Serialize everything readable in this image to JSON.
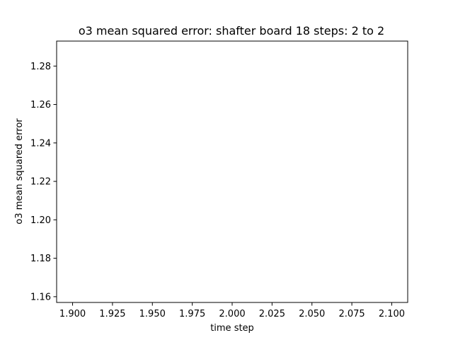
{
  "chart_data": {
    "type": "line",
    "title": "o3 mean squared error: shafter board 18 steps: 2 to 2",
    "xlabel": "time step",
    "ylabel": "o3 mean squared error",
    "xlim": [
      1.89,
      2.11
    ],
    "ylim": [
      1.157,
      1.293
    ],
    "xticks": [
      1.9,
      1.925,
      1.95,
      1.975,
      2.0,
      2.025,
      2.05,
      2.075,
      2.1
    ],
    "xtick_labels": [
      "1.900",
      "1.925",
      "1.950",
      "1.975",
      "2.000",
      "2.025",
      "2.050",
      "2.075",
      "2.100"
    ],
    "yticks": [
      1.16,
      1.18,
      1.2,
      1.22,
      1.24,
      1.26,
      1.28
    ],
    "ytick_labels": [
      "1.16",
      "1.18",
      "1.20",
      "1.22",
      "1.24",
      "1.26",
      "1.28"
    ],
    "grid": false,
    "series": []
  }
}
